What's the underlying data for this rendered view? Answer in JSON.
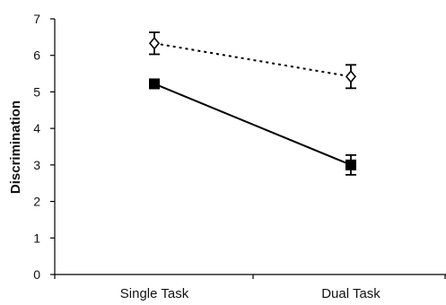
{
  "chart_data": {
    "type": "line",
    "xlabel": "",
    "ylabel": "Discrimination",
    "categories": [
      "Single Task",
      "Dual Task"
    ],
    "ylim": [
      0,
      7
    ],
    "yticks": [
      "0",
      "1",
      "2",
      "3",
      "4",
      "5",
      "6",
      "7"
    ],
    "grid": false,
    "legend": "none",
    "series": [
      {
        "marker": "open-diamond",
        "line_style": "dotted",
        "color": "#000000",
        "values": [
          6.33,
          5.42
        ],
        "error": [
          0.3,
          0.32
        ]
      },
      {
        "marker": "filled-square",
        "line_style": "solid",
        "color": "#000000",
        "values": [
          5.22,
          3.0
        ],
        "error": [
          0.12,
          0.27
        ]
      }
    ]
  }
}
